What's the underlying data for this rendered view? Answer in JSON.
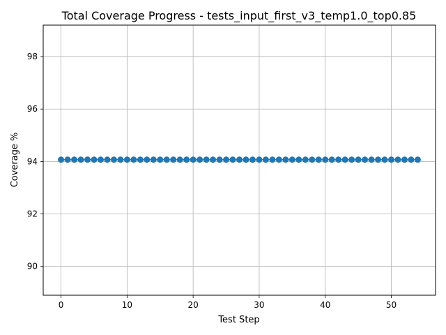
{
  "chart_data": {
    "type": "line",
    "title": "Total Coverage Progress - tests_input_first_v3_temp1.0_top0.85",
    "xlabel": "Test Step",
    "ylabel": "Coverage %",
    "xlim": [
      -2.7,
      56.7
    ],
    "ylim": [
      88.9,
      99.2
    ],
    "xticks": [
      0,
      10,
      20,
      30,
      40,
      50
    ],
    "yticks": [
      90,
      92,
      94,
      96,
      98
    ],
    "grid": true,
    "legend": "none",
    "series": [
      {
        "color": "#1f77b4",
        "marker": "circle",
        "x": [
          0,
          1,
          2,
          3,
          4,
          5,
          6,
          7,
          8,
          9,
          10,
          11,
          12,
          13,
          14,
          15,
          16,
          17,
          18,
          19,
          20,
          21,
          22,
          23,
          24,
          25,
          26,
          27,
          28,
          29,
          30,
          31,
          32,
          33,
          34,
          35,
          36,
          37,
          38,
          39,
          40,
          41,
          42,
          43,
          44,
          45,
          46,
          47,
          48,
          49,
          50,
          51,
          52,
          53,
          54
        ],
        "y": [
          94.07,
          94.07,
          94.07,
          94.07,
          94.07,
          94.07,
          94.07,
          94.07,
          94.07,
          94.07,
          94.07,
          94.07,
          94.07,
          94.07,
          94.07,
          94.07,
          94.07,
          94.07,
          94.07,
          94.07,
          94.07,
          94.07,
          94.07,
          94.07,
          94.07,
          94.07,
          94.07,
          94.07,
          94.07,
          94.07,
          94.07,
          94.07,
          94.07,
          94.07,
          94.07,
          94.07,
          94.07,
          94.07,
          94.07,
          94.07,
          94.07,
          94.07,
          94.07,
          94.07,
          94.07,
          94.07,
          94.07,
          94.07,
          94.07,
          94.07,
          94.07,
          94.07,
          94.07,
          94.07,
          94.07
        ]
      }
    ]
  }
}
